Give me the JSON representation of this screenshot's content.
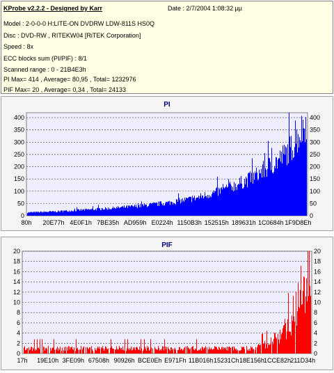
{
  "info": {
    "title": "KProbe v2.2.2 - Designed by Karr",
    "date": "Date : 2/7/2004 1:08:32 μμ",
    "lines": [
      "Model : 2-0-0-0 H:LITE-ON DVDRW LDW-811S   HS0Q",
      "Disc : DVD-RW , RITEKW04 [RiTEK Corporation]",
      "Speed : 8x",
      "ECC blocks sum (PI/PIF) : 8/1",
      "Scanned range : 0 - 21B4E3h",
      "PI Max= 414 , Average= 80,95 , Total= 1232976",
      "PIF Max= 20 , Average= 0,34 , Total= 24133"
    ]
  },
  "chart_data": [
    {
      "type": "bar",
      "title": "PI",
      "color": "#0000ff",
      "ylim": [
        0,
        420
      ],
      "y_ticks": [
        0,
        50,
        100,
        150,
        200,
        250,
        300,
        350,
        400
      ],
      "y_tick_labels": [
        "0",
        "50",
        "100",
        "150",
        "200",
        "250",
        "300",
        "350",
        "400"
      ],
      "x_tick_labels": [
        "80h",
        "20E77h",
        "4E0F1h",
        "7BE35h",
        "AD959h",
        "E0224h",
        "1150B3h",
        "152515h",
        "189631h",
        "1C0684h",
        "1F9D8Eh"
      ],
      "grid": true,
      "profile": [
        [
          0,
          14
        ],
        [
          0.1,
          18
        ],
        [
          0.2,
          25
        ],
        [
          0.3,
          32
        ],
        [
          0.4,
          42
        ],
        [
          0.5,
          55
        ],
        [
          0.6,
          75
        ],
        [
          0.7,
          110
        ],
        [
          0.8,
          160
        ],
        [
          0.85,
          200
        ],
        [
          0.9,
          240
        ],
        [
          0.95,
          300
        ],
        [
          1.0,
          414
        ]
      ]
    },
    {
      "type": "bar",
      "title": "PIF",
      "color": "#ff0000",
      "ylim": [
        0,
        20
      ],
      "y_ticks": [
        0,
        2,
        4,
        6,
        8,
        10,
        12,
        14,
        16,
        18,
        20
      ],
      "y_tick_labels": [
        "0",
        "2",
        "4",
        "6",
        "8",
        "10",
        "12",
        "14",
        "16",
        "18",
        "20"
      ],
      "x_tick_labels": [
        "17h",
        "19E10h",
        "3FE09h",
        "67508h",
        "90926h",
        "BCE0Eh",
        "E971Fh",
        "11B016h",
        "15231Ch",
        "18E156h",
        "1CCE82h",
        "211D34h"
      ],
      "grid": true,
      "profile": [
        [
          0,
          1
        ],
        [
          0.8,
          1
        ],
        [
          0.85,
          2
        ],
        [
          0.9,
          4
        ],
        [
          0.93,
          7
        ],
        [
          0.95,
          10
        ],
        [
          0.98,
          14
        ],
        [
          1.0,
          20
        ]
      ]
    }
  ]
}
